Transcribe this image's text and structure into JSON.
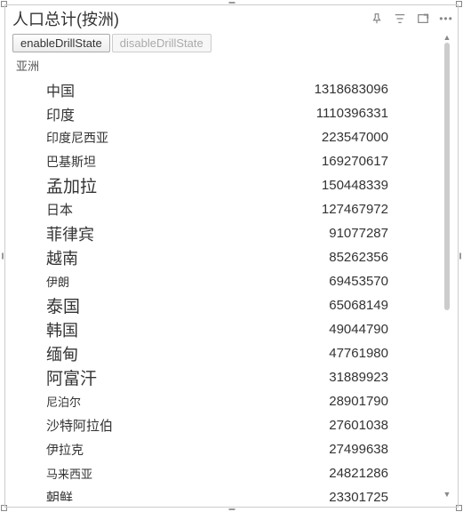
{
  "title": "人口总计(按洲)",
  "buttons": {
    "enable": "enableDrillState",
    "disable": "disableDrillState"
  },
  "group": "亚洲",
  "rows": [
    {
      "label": "中国",
      "value": "1318683096",
      "size": 16
    },
    {
      "label": "印度",
      "value": "1110396331",
      "size": 16
    },
    {
      "label": "印度尼西亚",
      "value": "223547000",
      "size": 14
    },
    {
      "label": "巴基斯坦",
      "value": "169270617",
      "size": 14
    },
    {
      "label": "孟加拉",
      "value": "150448339",
      "size": 19
    },
    {
      "label": "日本",
      "value": "127467972",
      "size": 15
    },
    {
      "label": "菲律宾",
      "value": "91077287",
      "size": 18
    },
    {
      "label": "越南",
      "value": "85262356",
      "size": 18
    },
    {
      "label": "伊朗",
      "value": "69453570",
      "size": 13
    },
    {
      "label": "泰国",
      "value": "65068149",
      "size": 19
    },
    {
      "label": "韩国",
      "value": "49044790",
      "size": 18
    },
    {
      "label": "缅甸",
      "value": "47761980",
      "size": 18
    },
    {
      "label": "阿富汗",
      "value": "31889923",
      "size": 19
    },
    {
      "label": "尼泊尔",
      "value": "28901790",
      "size": 13
    },
    {
      "label": "沙特阿拉伯",
      "value": "27601038",
      "size": 15
    },
    {
      "label": "伊拉克",
      "value": "27499638",
      "size": 14
    },
    {
      "label": "马来西亚",
      "value": "24821286",
      "size": 13
    },
    {
      "label": "朝鲜",
      "value": "23301725",
      "size": 15
    }
  ]
}
